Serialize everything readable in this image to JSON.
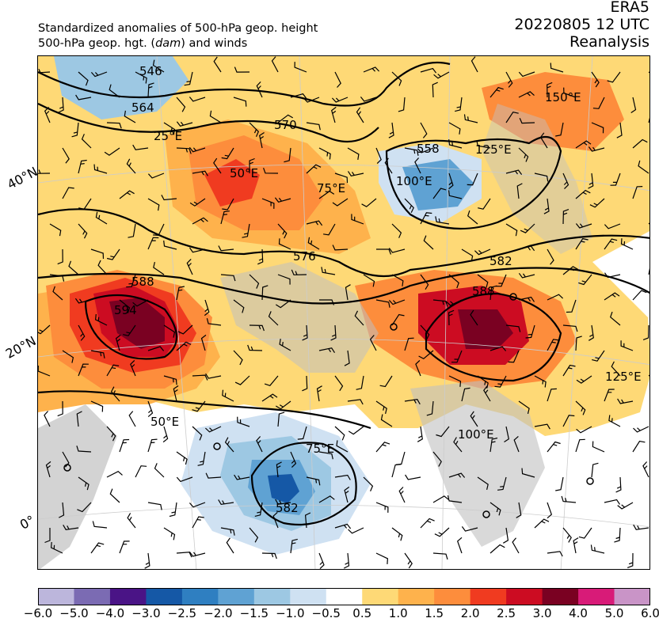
{
  "header": {
    "line1": "Standardized anomalies of 500-hPa geop. height",
    "line2_prefix": "500-hPa geop. hgt. (",
    "line2_unit": "dam",
    "line2_suffix": ") and winds",
    "model": "ERA5",
    "datetime": "20220805 12 UTC",
    "product": "Reanalysis"
  },
  "map": {
    "lat_labels": [
      "40°N",
      "20°N",
      "0°"
    ],
    "lon_labels": [
      "25°E",
      "50°E",
      "75°E",
      "100°E",
      "125°E",
      "150°E",
      "50°E",
      "75°E",
      "100°E",
      "125°E"
    ],
    "contour_labels": [
      "546",
      "564",
      "570",
      "558",
      "576",
      "582",
      "588",
      "588",
      "594",
      "582",
      "588"
    ]
  },
  "colorbar": {
    "ticks": [
      "−6.0",
      "−5.0",
      "−4.0",
      "−3.0",
      "−2.5",
      "−2.0",
      "−1.5",
      "−1.0",
      "−0.5",
      "0.5",
      "1.0",
      "1.5",
      "2.0",
      "2.5",
      "3.0",
      "4.0",
      "5.0",
      "6.0"
    ],
    "colors": [
      "#bcb6dc",
      "#7b6bb3",
      "#4a1486",
      "#1558a6",
      "#2f7fc1",
      "#5fa2d3",
      "#9dc8e3",
      "#cfe1f2",
      "#ffffff",
      "#fed976",
      "#feb24c",
      "#fd8d3c",
      "#f03b20",
      "#cc0c22",
      "#7a0122",
      "#d81b78",
      "#c994c7"
    ]
  }
}
